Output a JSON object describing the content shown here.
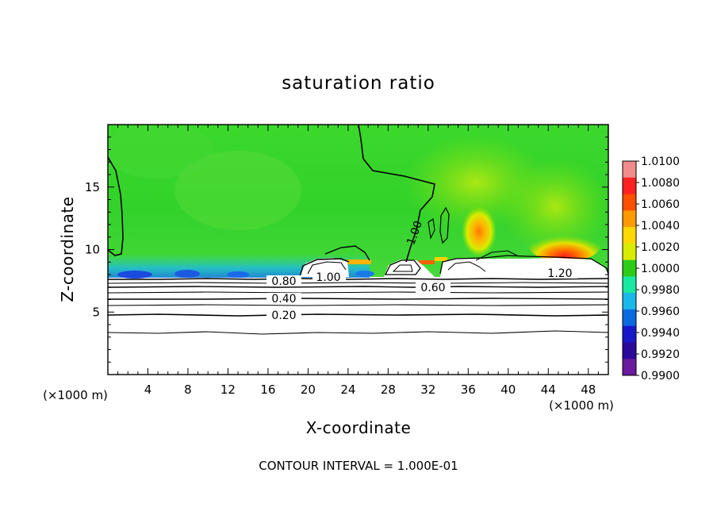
{
  "chart_data": {
    "type": "heatmap",
    "title": "saturation ratio",
    "xlabel": "X-coordinate",
    "ylabel": "Z-coordinate",
    "x_unit_left": "(×1000 m)",
    "x_unit_right": "(×1000 m)",
    "xlim": [
      0,
      50
    ],
    "ylim": [
      0,
      20
    ],
    "x_ticks": [
      "4",
      "8",
      "12",
      "16",
      "20",
      "24",
      "28",
      "32",
      "36",
      "40",
      "44",
      "48"
    ],
    "y_ticks": [
      "5",
      "10",
      "15"
    ],
    "colorbar": {
      "labels": [
        "1.0100",
        "1.0080",
        "1.0060",
        "1.0040",
        "1.0020",
        "1.0000",
        "0.9980",
        "0.9960",
        "0.9940",
        "0.9920",
        "0.9900"
      ],
      "colors": [
        "#f08c8c",
        "#ff2020",
        "#ff5000",
        "#ff9a00",
        "#ffd800",
        "#d8ec00",
        "#2ccc18",
        "#18e8a0",
        "#1ab8e8",
        "#0a6ae0",
        "#1818c8",
        "#2a0a9a",
        "#6a1a9a"
      ]
    },
    "contour_labels": [
      "1.00",
      "0.80",
      "1.00",
      "0.60",
      "1.20",
      "0.40",
      "0.20"
    ],
    "footer": "CONTOUR INTERVAL = 1.000E-01"
  }
}
